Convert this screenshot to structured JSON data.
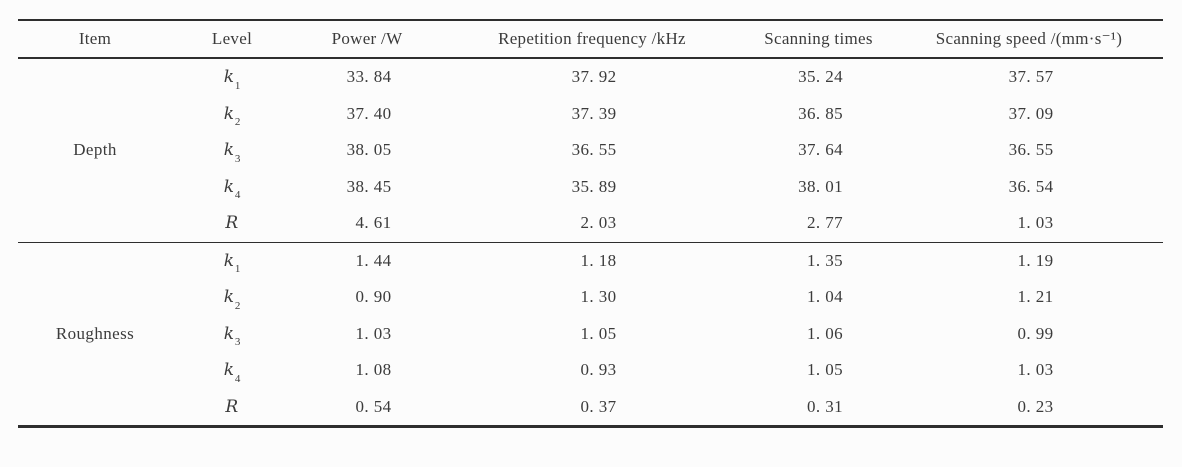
{
  "page": {
    "background": "#fcfcfc",
    "text_color": "#3b3b3b",
    "rule_color": "#2e2e2e"
  },
  "table": {
    "headers": [
      {
        "label": "Item"
      },
      {
        "label": "Level"
      },
      {
        "label": "Power /W"
      },
      {
        "label": "Repetition frequency /kHz"
      },
      {
        "label": "Scanning times"
      },
      {
        "label": "Scanning speed /(mm·s⁻¹)"
      }
    ],
    "groups": [
      {
        "item": "Depth",
        "rows": [
          {
            "level": {
              "base": "k",
              "sub": "1"
            },
            "values": [
              "33. 84",
              "37. 92",
              "35. 24",
              "37. 57"
            ]
          },
          {
            "level": {
              "base": "k",
              "sub": "2"
            },
            "values": [
              "37. 40",
              "37. 39",
              "36. 85",
              "37. 09"
            ]
          },
          {
            "level": {
              "base": "k",
              "sub": "3"
            },
            "values": [
              "38. 05",
              "36. 55",
              "37. 64",
              "36. 55"
            ]
          },
          {
            "level": {
              "base": "k",
              "sub": "4"
            },
            "values": [
              "38. 45",
              "35. 89",
              "38. 01",
              "36. 54"
            ]
          },
          {
            "level": {
              "base": "R",
              "sub": ""
            },
            "values": [
              "4. 61",
              "2. 03",
              "2. 77",
              "1. 03"
            ]
          }
        ]
      },
      {
        "item": "Roughness",
        "rows": [
          {
            "level": {
              "base": "k",
              "sub": "1"
            },
            "values": [
              "1. 44",
              "1. 18",
              "1. 35",
              "1. 19"
            ]
          },
          {
            "level": {
              "base": "k",
              "sub": "2"
            },
            "values": [
              "0. 90",
              "1. 30",
              "1. 04",
              "1. 21"
            ]
          },
          {
            "level": {
              "base": "k",
              "sub": "3"
            },
            "values": [
              "1. 03",
              "1. 05",
              "1. 06",
              "0. 99"
            ]
          },
          {
            "level": {
              "base": "k",
              "sub": "4"
            },
            "values": [
              "1. 08",
              "0. 93",
              "1. 05",
              "1. 03"
            ]
          },
          {
            "level": {
              "base": "R",
              "sub": ""
            },
            "values": [
              "0. 54",
              "0. 37",
              "0. 31",
              "0. 23"
            ]
          }
        ]
      }
    ]
  }
}
